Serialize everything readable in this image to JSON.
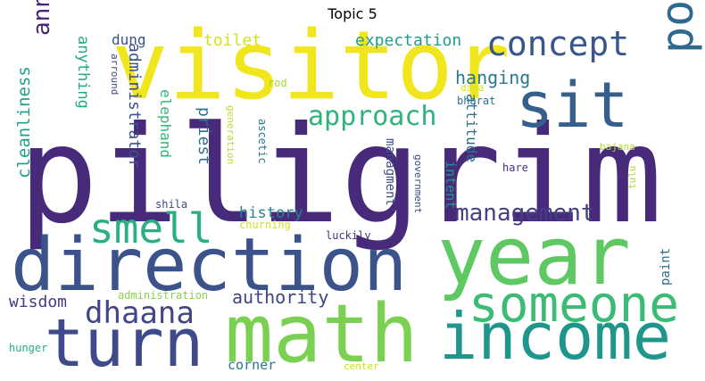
{
  "chart_data": {
    "type": "wordcloud",
    "title": "Topic 5",
    "colormap": "viridis",
    "words": [
      {
        "text": "piligrim",
        "weight": 1.0,
        "color": "#472a7a"
      },
      {
        "text": "visitor",
        "weight": 0.78,
        "color": "#f1e51d"
      },
      {
        "text": "direction",
        "weight": 0.64,
        "color": "#3b528b"
      },
      {
        "text": "year",
        "weight": 0.62,
        "color": "#5ec962"
      },
      {
        "text": "math",
        "weight": 0.6,
        "color": "#7ad151"
      },
      {
        "text": "income",
        "weight": 0.48,
        "color": "#1f968b"
      },
      {
        "text": "turn",
        "weight": 0.5,
        "color": "#3e4a89"
      },
      {
        "text": "sit",
        "weight": 0.46,
        "color": "#355f8d"
      },
      {
        "text": "someone",
        "weight": 0.38,
        "color": "#3bbb75"
      },
      {
        "text": "pooja",
        "weight": 0.34,
        "color": "#31688e"
      },
      {
        "text": "concept",
        "weight": 0.26,
        "color": "#39568c"
      },
      {
        "text": "smell",
        "weight": 0.3,
        "color": "#2ab07f"
      },
      {
        "text": "dhaana",
        "weight": 0.24,
        "color": "#404688"
      },
      {
        "text": "approach",
        "weight": 0.22,
        "color": "#2eb37c"
      },
      {
        "text": "management",
        "weight": 0.17,
        "color": "#433e85"
      },
      {
        "text": "anna",
        "weight": 0.17,
        "color": "#482576"
      },
      {
        "text": "hanging",
        "weight": 0.13,
        "color": "#2a788e"
      },
      {
        "text": "authority",
        "weight": 0.13,
        "color": "#414487"
      },
      {
        "text": "history",
        "weight": 0.11,
        "color": "#26828e"
      },
      {
        "text": "cleanliness",
        "weight": 0.11,
        "color": "#1fa188"
      },
      {
        "text": "expectation",
        "weight": 0.11,
        "color": "#1f9e89"
      },
      {
        "text": "toilet",
        "weight": 0.11,
        "color": "#d2e21b"
      },
      {
        "text": "wisdom",
        "weight": 0.1,
        "color": "#443a83"
      },
      {
        "text": "administrator",
        "weight": 0.1,
        "color": "#3b528b"
      },
      {
        "text": "anything",
        "weight": 0.09,
        "color": "#22a884"
      },
      {
        "text": "dung",
        "weight": 0.09,
        "color": "#3a548c"
      },
      {
        "text": "elephand",
        "weight": 0.09,
        "color": "#35b779"
      },
      {
        "text": "priest",
        "weight": 0.09,
        "color": "#2c728e"
      },
      {
        "text": "attitude",
        "weight": 0.09,
        "color": "#2d708e"
      },
      {
        "text": "intent",
        "weight": 0.08,
        "color": "#1f9a8a"
      },
      {
        "text": "managment",
        "weight": 0.08,
        "color": "#3e4c8a"
      },
      {
        "text": "corner",
        "weight": 0.08,
        "color": "#2a778e"
      },
      {
        "text": "paint",
        "weight": 0.07,
        "color": "#2f6b8e"
      },
      {
        "text": "administration",
        "weight": 0.05,
        "color": "#86d549"
      },
      {
        "text": "hunger",
        "weight": 0.05,
        "color": "#27ad81"
      },
      {
        "text": "arround",
        "weight": 0.05,
        "color": "#3d4d8a"
      },
      {
        "text": "rod",
        "weight": 0.05,
        "color": "#a2da37"
      },
      {
        "text": "shila",
        "weight": 0.05,
        "color": "#414487"
      },
      {
        "text": "churning",
        "weight": 0.05,
        "color": "#d5e21a"
      },
      {
        "text": "luckily",
        "weight": 0.05,
        "color": "#46337e"
      },
      {
        "text": "government",
        "weight": 0.04,
        "color": "#3e4989"
      },
      {
        "text": "ascetic",
        "weight": 0.04,
        "color": "#2a788e"
      },
      {
        "text": "generation",
        "weight": 0.04,
        "color": "#b5de2b"
      },
      {
        "text": "dana",
        "weight": 0.04,
        "color": "#d8e219"
      },
      {
        "text": "bharat",
        "weight": 0.04,
        "color": "#2c728e"
      },
      {
        "text": "bajana",
        "weight": 0.04,
        "color": "#b0dd2f"
      },
      {
        "text": "hare",
        "weight": 0.04,
        "color": "#46327e"
      },
      {
        "text": "tulu",
        "weight": 0.04,
        "color": "#addc30"
      },
      {
        "text": "center",
        "weight": 0.04,
        "color": "#c8e020"
      }
    ]
  }
}
